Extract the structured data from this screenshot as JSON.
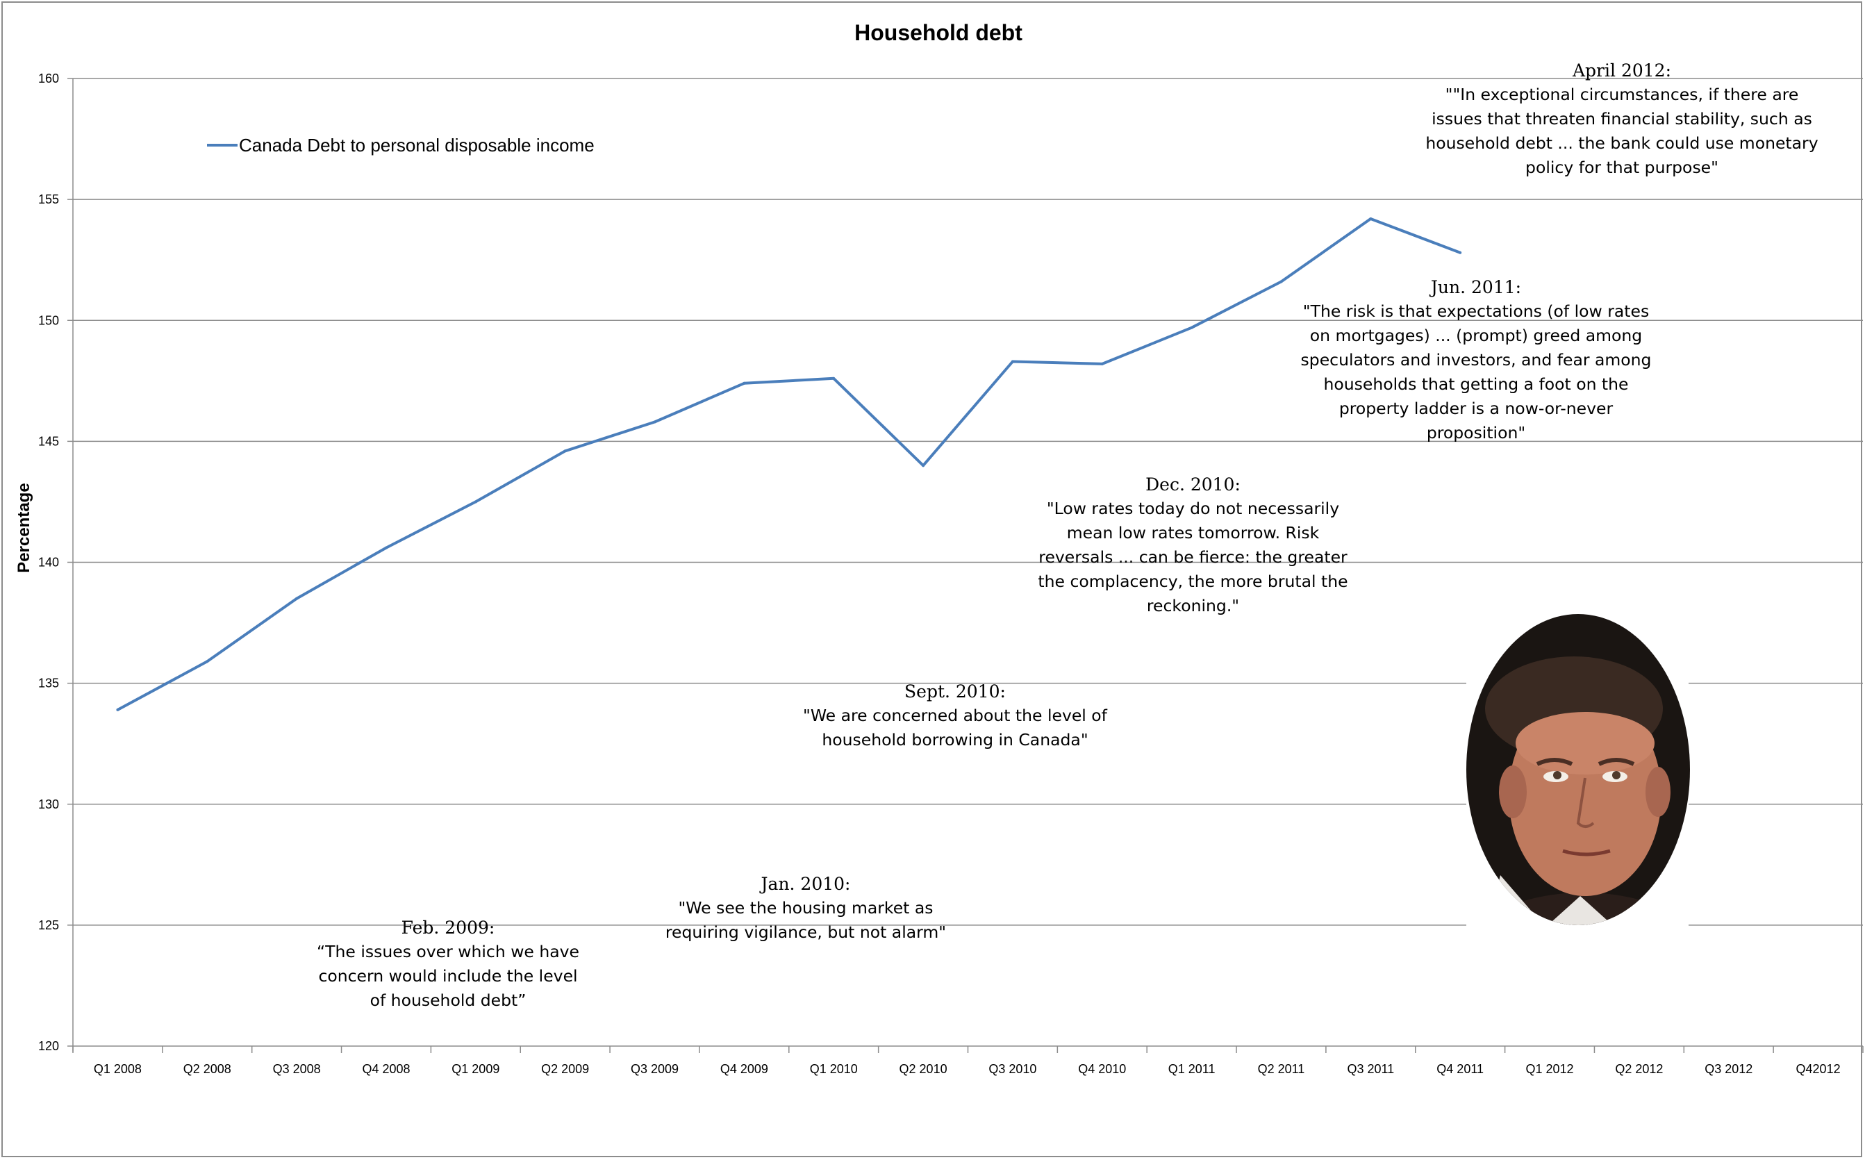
{
  "chart_data": {
    "type": "line",
    "title": "Household debt",
    "ylabel": "Percentage",
    "xlabel": "",
    "ylim": [
      120,
      160
    ],
    "yticks": [
      "120",
      "125",
      "130",
      "135",
      "140",
      "145",
      "150",
      "155",
      "160"
    ],
    "categories": [
      "Q1 2008",
      "Q2 2008",
      "Q3 2008",
      "Q4 2008",
      "Q1 2009",
      "Q2 2009",
      "Q3 2009",
      "Q4 2009",
      "Q1 2010",
      "Q2 2010",
      "Q3 2010",
      "Q4 2010",
      "Q1 2011",
      "Q2 2011",
      "Q3 2011",
      "Q4 2011",
      "Q1 2012",
      "Q2 2012",
      "Q3 2012",
      "Q42012"
    ],
    "series": [
      {
        "name": "Canada Debt to personal disposable income",
        "color": "#4a7ebb",
        "values": [
          133.9,
          135.9,
          138.5,
          140.6,
          142.5,
          144.6,
          145.8,
          147.4,
          147.6,
          144.0,
          148.3,
          148.2,
          149.7,
          151.6,
          154.2,
          152.8,
          null,
          null,
          null,
          null
        ]
      }
    ],
    "grid": true,
    "legend": "top-left",
    "annotations": [
      {
        "id": "apr2012",
        "date": "April 2012:",
        "text": "\"\"In exceptional circumstances, if there are issues that threaten financial stability, such as household debt ... the bank could use monetary policy for that purpose\""
      },
      {
        "id": "jun2011",
        "date": "Jun. 2011:",
        "text": "\"The risk is that expectations (of low rates on mortgages) ... (prompt) greed among speculators and investors, and fear among households that getting a foot on the property ladder is a now-or-never proposition\""
      },
      {
        "id": "dec2010",
        "date": "Dec. 2010:",
        "text": "\"Low rates today do not necessarily mean low rates tomorrow. Risk reversals ... can be fierce: the greater the complacency, the more brutal the reckoning.\""
      },
      {
        "id": "sep2010",
        "date": "Sept. 2010:",
        "text": "\"We are concerned about the level of household borrowing in Canada\""
      },
      {
        "id": "jan2010",
        "date": "Jan. 2010:",
        "text": "\"We see the housing market as requiring vigilance, but not alarm\""
      },
      {
        "id": "feb2009",
        "date": "Feb. 2009:",
        "text": "“The issues over which we have concern would include the level of household debt”"
      }
    ]
  },
  "portrait": {
    "icon": "portrait-photo"
  }
}
